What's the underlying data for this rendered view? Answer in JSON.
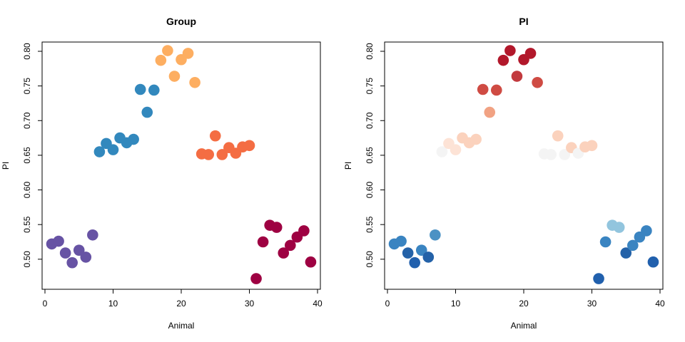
{
  "chart_data": [
    {
      "type": "scatter",
      "title": "Group",
      "xlabel": "Animal",
      "ylabel": "PI",
      "xlim": [
        0,
        40
      ],
      "ylim": [
        0.47,
        0.8
      ],
      "xticks": [
        "0",
        "10",
        "20",
        "30",
        "40"
      ],
      "yticks": [
        "0.50",
        "0.55",
        "0.60",
        "0.65",
        "0.70",
        "0.75",
        "0.80"
      ],
      "x": [
        1,
        2,
        3,
        4,
        5,
        6,
        7,
        8,
        9,
        10,
        11,
        12,
        13,
        14,
        15,
        16,
        17,
        18,
        19,
        20,
        21,
        22,
        23,
        24,
        25,
        26,
        27,
        28,
        29,
        30,
        31,
        32,
        33,
        34,
        35,
        36,
        37,
        38,
        39
      ],
      "y": [
        0.522,
        0.526,
        0.509,
        0.495,
        0.513,
        0.503,
        0.535,
        0.655,
        0.667,
        0.658,
        0.675,
        0.668,
        0.673,
        0.745,
        0.712,
        0.744,
        0.787,
        0.801,
        0.764,
        0.788,
        0.797,
        0.755,
        0.652,
        0.651,
        0.678,
        0.651,
        0.661,
        0.653,
        0.662,
        0.664,
        0.472,
        0.525,
        0.549,
        0.546,
        0.509,
        0.52,
        0.532,
        0.541,
        0.496
      ],
      "colors": [
        "#6753a4",
        "#6753a4",
        "#6753a4",
        "#6753a4",
        "#6753a4",
        "#6753a4",
        "#6753a4",
        "#3288bd",
        "#3288bd",
        "#3288bd",
        "#3288bd",
        "#3288bd",
        "#3288bd",
        "#3288bd",
        "#3288bd",
        "#3288bd",
        "#fdae61",
        "#fdae61",
        "#fdae61",
        "#fdae61",
        "#fdae61",
        "#fdae61",
        "#f46d43",
        "#f46d43",
        "#f46d43",
        "#f46d43",
        "#f46d43",
        "#f46d43",
        "#f46d43",
        "#f46d43",
        "#9e0142",
        "#9e0142",
        "#9e0142",
        "#9e0142",
        "#9e0142",
        "#9e0142",
        "#9e0142",
        "#9e0142",
        "#9e0142"
      ]
    },
    {
      "type": "scatter",
      "title": "PI",
      "xlabel": "Animal",
      "ylabel": "PI",
      "xlim": [
        0,
        40
      ],
      "ylim": [
        0.47,
        0.8
      ],
      "xticks": [
        "0",
        "10",
        "20",
        "30",
        "40"
      ],
      "yticks": [
        "0.50",
        "0.55",
        "0.60",
        "0.65",
        "0.70",
        "0.75",
        "0.80"
      ],
      "x": [
        1,
        2,
        3,
        4,
        5,
        6,
        7,
        8,
        9,
        10,
        11,
        12,
        13,
        14,
        15,
        16,
        17,
        18,
        19,
        20,
        21,
        22,
        23,
        24,
        25,
        26,
        27,
        28,
        29,
        30,
        31,
        32,
        33,
        34,
        35,
        36,
        37,
        38,
        39
      ],
      "y": [
        0.522,
        0.526,
        0.509,
        0.495,
        0.513,
        0.503,
        0.535,
        0.655,
        0.667,
        0.658,
        0.675,
        0.668,
        0.673,
        0.745,
        0.712,
        0.744,
        0.787,
        0.801,
        0.764,
        0.788,
        0.797,
        0.755,
        0.652,
        0.651,
        0.678,
        0.651,
        0.661,
        0.653,
        0.662,
        0.664,
        0.472,
        0.525,
        0.549,
        0.546,
        0.509,
        0.52,
        0.532,
        0.541,
        0.496
      ],
      "colors": [
        "#3a84c1",
        "#3a84c1",
        "#2462a8",
        "#2160ad",
        "#3a84c1",
        "#2462a8",
        "#4b92c4",
        "#f4f4f4",
        "#fde3d6",
        "#fde3d6",
        "#fbd2bd",
        "#fbd2bd",
        "#fbd2bd",
        "#cf4b43",
        "#f1a283",
        "#cf4b43",
        "#b2182b",
        "#b2182b",
        "#c23a3e",
        "#b2182b",
        "#b2182b",
        "#cf4b43",
        "#f4f4f4",
        "#f4f4f4",
        "#fbd2bd",
        "#f4f4f4",
        "#fbd2bd",
        "#f4f4f4",
        "#fbd2bd",
        "#fbd2bd",
        "#2160ad",
        "#3a84c1",
        "#92c5de",
        "#92c5de",
        "#2462a8",
        "#3a84c1",
        "#3a84c1",
        "#3a84c1",
        "#2160ad"
      ]
    }
  ]
}
